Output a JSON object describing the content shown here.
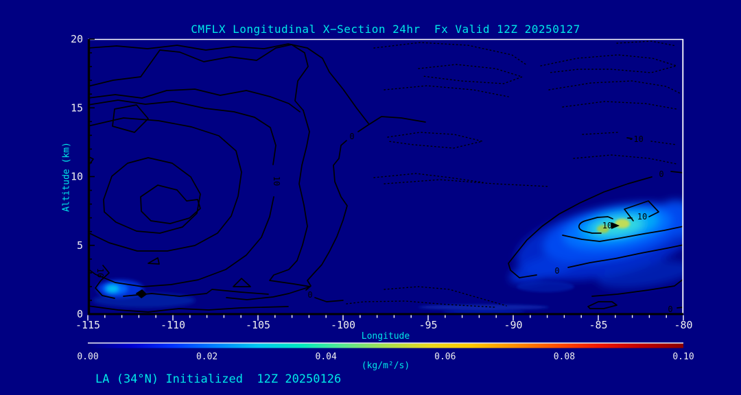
{
  "window": {
    "background_color": "#000082",
    "accent_text_color": "#00e8e8",
    "tick_text_color": "#f0f0f0",
    "contour_color": "#000000",
    "frame_color": "#ffffff"
  },
  "header": {
    "title": "CMFLX Longitudinal X−Section 24hr  Fx Valid 12Z 20250127"
  },
  "footer": {
    "caption": "LA (34°N) Initialized  12Z 20250126"
  },
  "chart_data": {
    "type": "heatmap",
    "subtype": "filled-contour longitudinal cross-section with overlaid line contours",
    "title": "CMFLX Longitudinal X−Section 24hr  Fx Valid 12Z 20250127",
    "xlabel": "Longitude",
    "ylabel": "Altitude (km)",
    "xlim": [
      -115,
      -80
    ],
    "ylim": [
      0,
      20
    ],
    "grid": false,
    "x_ticks": [
      -115,
      -110,
      -105,
      -100,
      -95,
      -90,
      -85,
      -80
    ],
    "x_tick_labels": [
      "-115",
      "-110",
      "-105",
      "-100",
      "-95",
      "-90",
      "-85",
      "-80"
    ],
    "x_minor_step": 1,
    "y_ticks": [
      0,
      5,
      10,
      15,
      20
    ],
    "y_tick_labels": [
      "0",
      "5",
      "10",
      "15",
      "20"
    ],
    "y_minor_step": 1,
    "colorbar": {
      "min": 0.0,
      "max": 0.1,
      "tick_labels": [
        "0.00",
        "0.02",
        "0.04",
        "0.06",
        "0.08",
        "0.10"
      ],
      "units_label": "(kg/m²/s)",
      "palette": [
        "#000080",
        "#0000d0",
        "#0033ff",
        "#0080ff",
        "#00c8f0",
        "#00e8c0",
        "#58e890",
        "#a8e050",
        "#e8d820",
        "#ffc800",
        "#ff9000",
        "#ff5000",
        "#f01800",
        "#c00000",
        "#8b0000"
      ]
    },
    "contour_labels": [
      {
        "text": "0"
      },
      {
        "text": "0"
      },
      {
        "text": "0"
      },
      {
        "text": "0"
      },
      {
        "text": "0"
      },
      {
        "text": "-10"
      },
      {
        "text": "10"
      },
      {
        "text": "10"
      },
      {
        "text": "10"
      },
      {
        "text": "10"
      }
    ],
    "labeled_contour_levels": [
      -10,
      0,
      10
    ],
    "features": [
      {
        "name": "primary-flux-maximum",
        "lon": -85.0,
        "altitude_km": 6.5,
        "approx_peak_kg_m2_s": 0.055
      },
      {
        "name": "secondary-flux-maximum",
        "lon": -113.5,
        "altitude_km": 1.8,
        "approx_peak_kg_m2_s": 0.035
      },
      {
        "name": "weak-low-level-streak",
        "lon": -91.5,
        "altitude_km": 0.5,
        "approx_peak_kg_m2_s": 0.01
      }
    ]
  }
}
